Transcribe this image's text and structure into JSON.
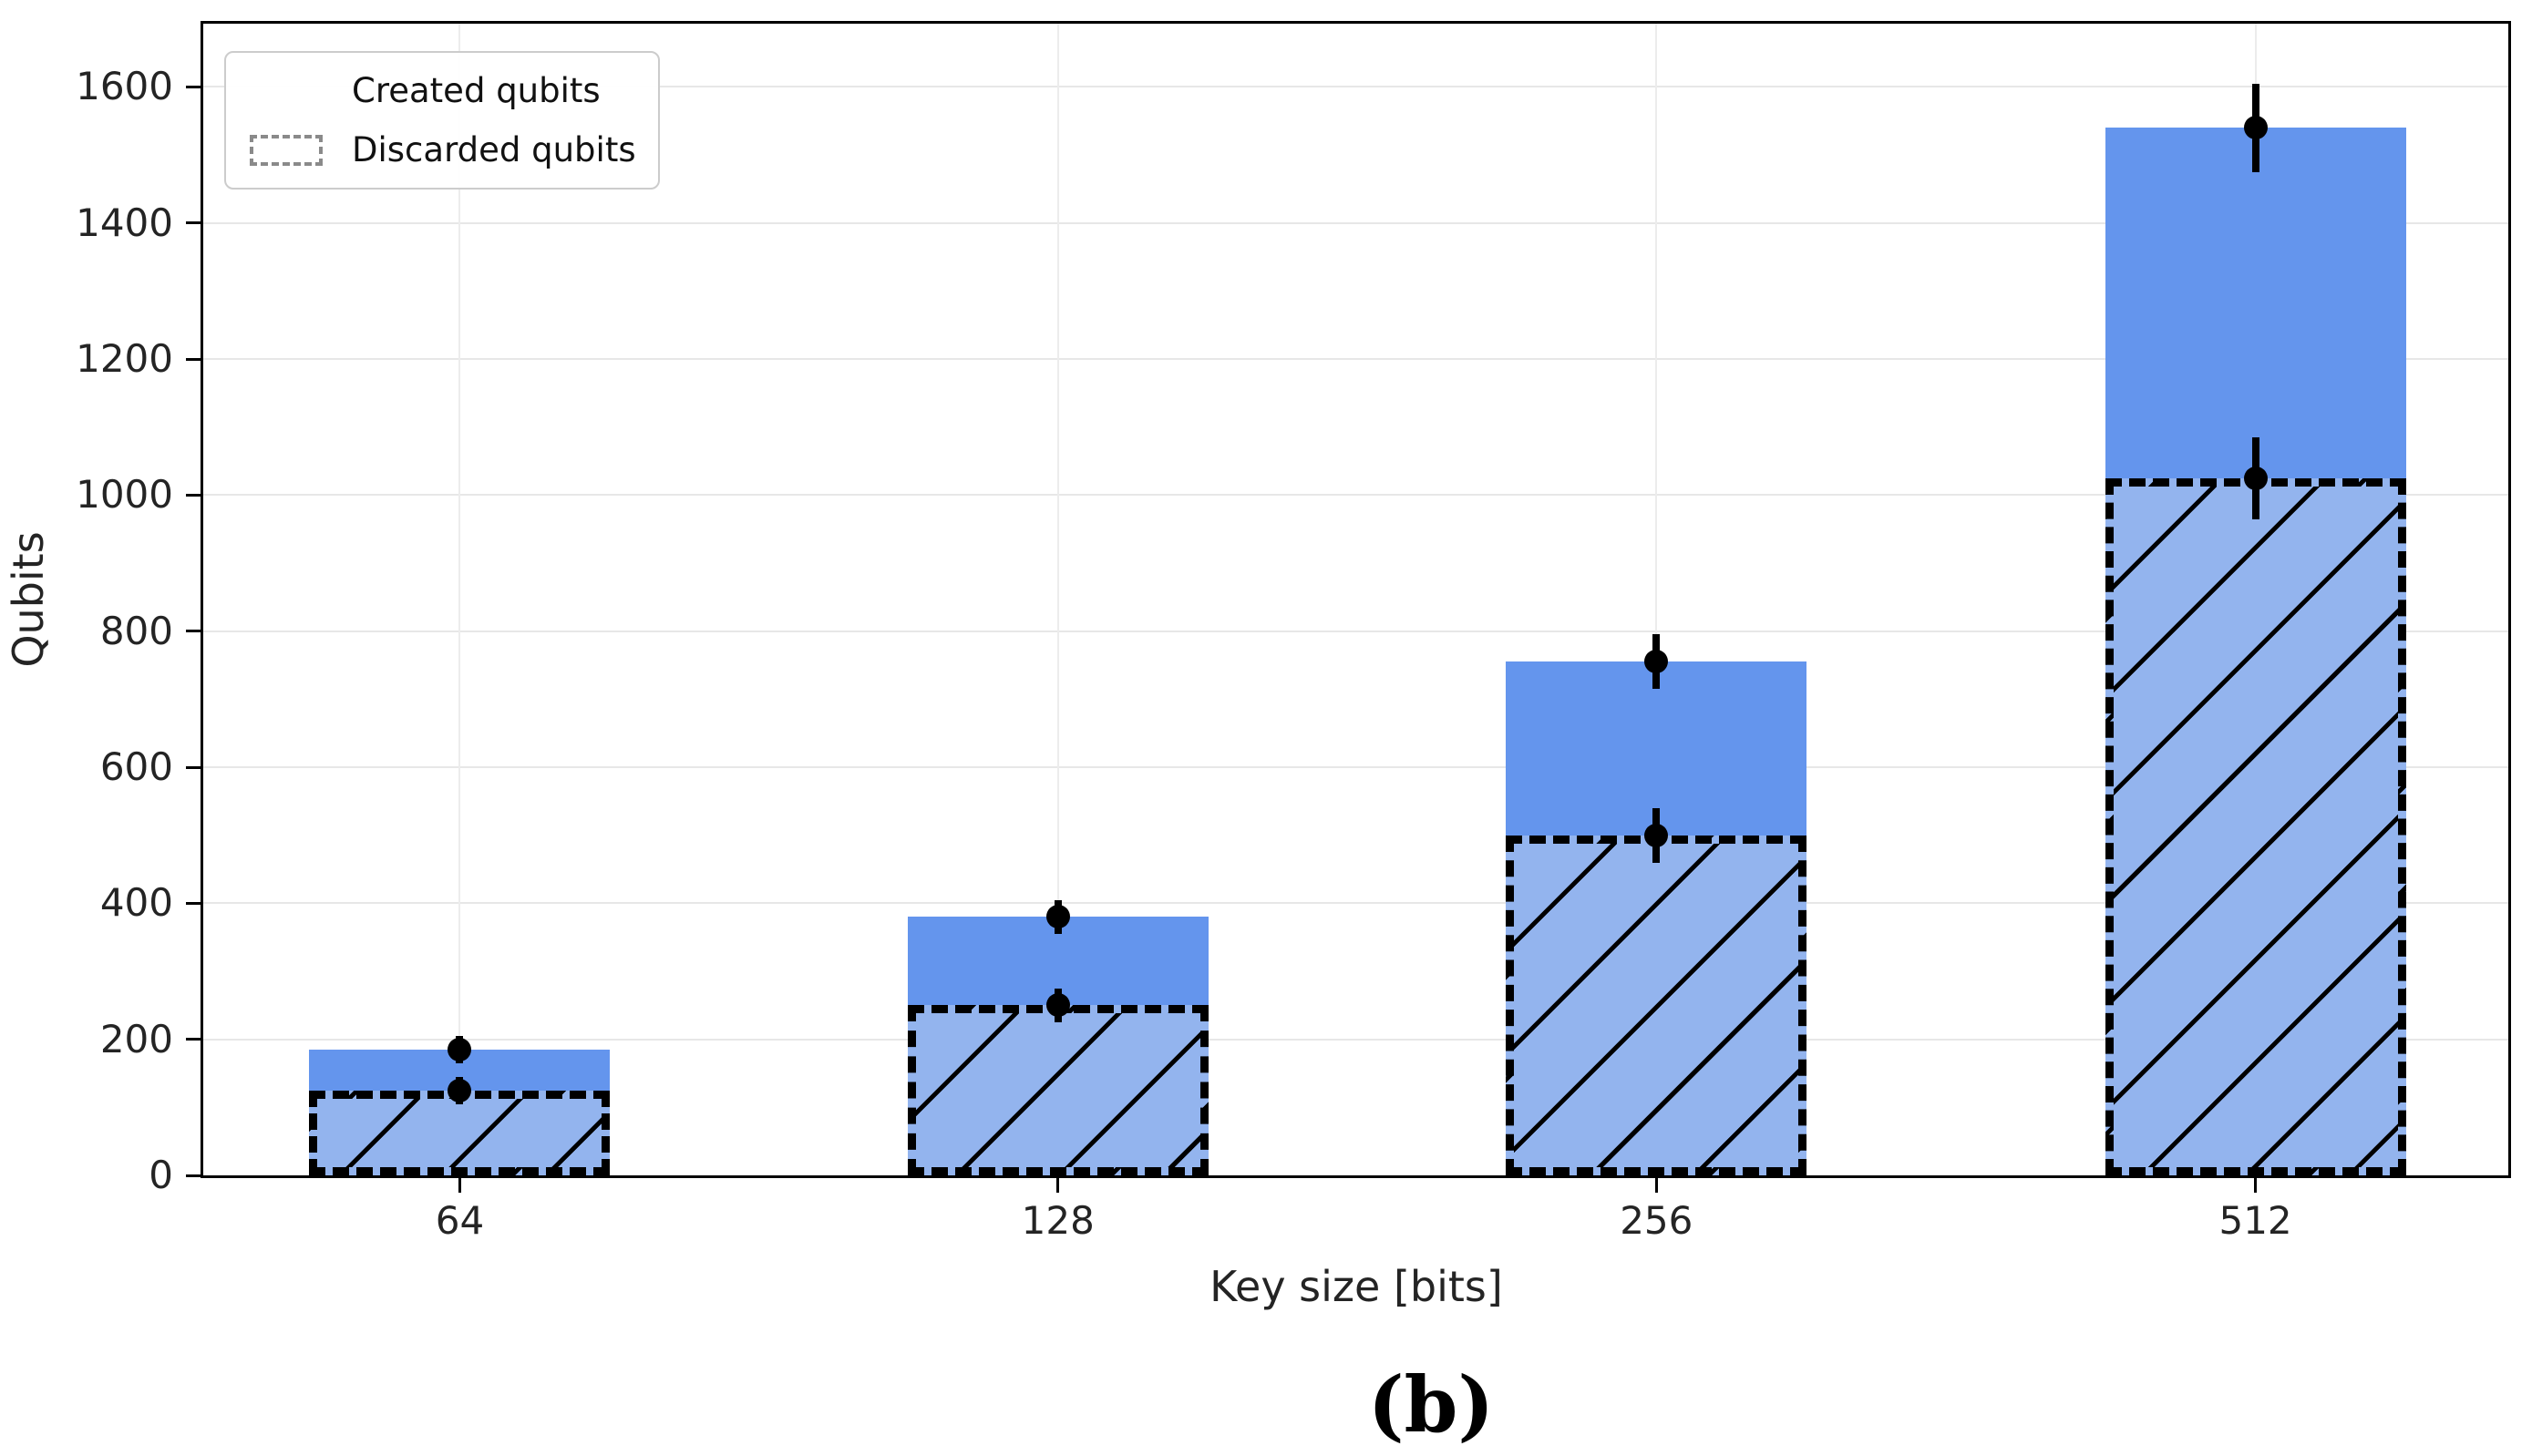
{
  "figure": {
    "caption": "(b)"
  },
  "legend": {
    "items": [
      {
        "label": "Created qubits",
        "swatch": "solid-blue"
      },
      {
        "label": "Discarded qubits",
        "swatch": "dashed-outline"
      }
    ]
  },
  "chart_data": {
    "type": "bar",
    "title": "",
    "xlabel": "Key size [bits]",
    "ylabel": "Qubits",
    "categories": [
      "64",
      "128",
      "256",
      "512"
    ],
    "series": [
      {
        "name": "Created qubits",
        "values": [
          185,
          380,
          755,
          1540
        ],
        "errors": [
          20,
          25,
          40,
          65
        ],
        "style": "solid",
        "color": "#6495ed"
      },
      {
        "name": "Discarded qubits",
        "values": [
          125,
          250,
          500,
          1025
        ],
        "errors": [
          20,
          25,
          40,
          60
        ],
        "style": "hatched-dashed-outline",
        "fill": "#93b4ee",
        "hatch": "/",
        "hatch_color": "#000000",
        "edge_color": "#000000"
      }
    ],
    "error_marker": "black-dot",
    "ylim": [
      0,
      1693
    ],
    "yticks": [
      0,
      200,
      400,
      600,
      800,
      1000,
      1200,
      1400,
      1600
    ],
    "grid": true,
    "grid_color": "#e7e7e7",
    "legend_position": "upper-left"
  }
}
